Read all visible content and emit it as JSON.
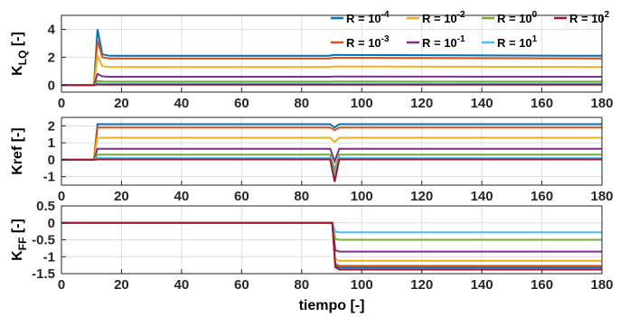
{
  "chart_data": [
    {
      "type": "line",
      "ylabel": "K",
      "ylabel_sub": "LQ",
      "ylabel_suffix": " [-]",
      "xlim": [
        0,
        180
      ],
      "ylim": [
        -0.5,
        5
      ],
      "xticks": [
        "0",
        "20",
        "40",
        "60",
        "80",
        "100",
        "120",
        "140",
        "160",
        "180"
      ],
      "yticks": [
        "0",
        "2",
        "4"
      ],
      "ytick_values": [
        0,
        2,
        4
      ],
      "grid": true,
      "legend_placement": "top-right",
      "series": [
        {
          "name": "R = 10",
          "exp": "-4",
          "color": "#0072bd",
          "base": 0.0,
          "peak": 4.0,
          "settle": 2.1,
          "dip": 0.0
        },
        {
          "name": "R = 10",
          "exp": "-3",
          "color": "#d95319",
          "base": 0.0,
          "peak": 3.2,
          "settle": 1.9,
          "dip": 0.0
        },
        {
          "name": "R = 10",
          "exp": "-2",
          "color": "#edb120",
          "base": 0.0,
          "peak": 2.1,
          "settle": 1.3,
          "dip": 0.0
        },
        {
          "name": "R = 10",
          "exp": "-1",
          "color": "#7e2f8e",
          "base": 0.0,
          "peak": 0.8,
          "settle": 0.6,
          "dip": 0.0
        },
        {
          "name": "R = 10",
          "exp": "0",
          "color": "#77ac30",
          "base": 0.0,
          "peak": 0.3,
          "settle": 0.25,
          "dip": 0.0
        },
        {
          "name": "R = 10",
          "exp": "1",
          "color": "#4dbeee",
          "base": 0.0,
          "peak": 0.12,
          "settle": 0.1,
          "dip": 0.0
        },
        {
          "name": "R = 10",
          "exp": "2",
          "color": "#a2142f",
          "base": 0.0,
          "peak": 0.05,
          "settle": 0.03,
          "dip": 0.0
        }
      ]
    },
    {
      "type": "line",
      "ylabel": "Kref [-]",
      "xlim": [
        0,
        180
      ],
      "ylim": [
        -1.5,
        2.5
      ],
      "xticks": [
        "0",
        "20",
        "40",
        "60",
        "80",
        "100",
        "120",
        "140",
        "160",
        "180"
      ],
      "yticks": [
        "-1",
        "0",
        "1",
        "2"
      ],
      "ytick_values": [
        -1,
        0,
        1,
        2
      ],
      "grid": true,
      "series": [
        {
          "color": "#0072bd",
          "settle": 2.1,
          "dip": 1.9
        },
        {
          "color": "#d95319",
          "settle": 1.9,
          "dip": 1.75
        },
        {
          "color": "#edb120",
          "settle": 1.3,
          "dip": 1.05
        },
        {
          "color": "#7e2f8e",
          "settle": 0.65,
          "dip": -0.1
        },
        {
          "color": "#77ac30",
          "settle": 0.3,
          "dip": -0.6
        },
        {
          "color": "#4dbeee",
          "settle": 0.1,
          "dip": -1.0
        },
        {
          "color": "#a2142f",
          "settle": 0.02,
          "dip": -1.3
        }
      ]
    },
    {
      "type": "line",
      "ylabel": "K",
      "ylabel_sub": "FF",
      "ylabel_suffix": " [-]",
      "xlabel": "tiempo [-]",
      "xlim": [
        0,
        180
      ],
      "ylim": [
        -1.5,
        0.5
      ],
      "xticks": [
        "0",
        "20",
        "40",
        "60",
        "80",
        "100",
        "120",
        "140",
        "160",
        "180"
      ],
      "yticks": [
        "0.5",
        "0",
        "-0.5",
        "-1",
        "-1.5"
      ],
      "ytick_values": [
        0.5,
        0,
        -0.5,
        -1,
        -1.5
      ],
      "grid": true,
      "series": [
        {
          "color": "#0072bd",
          "settle": -1.32
        },
        {
          "color": "#d95319",
          "settle": -1.27
        },
        {
          "color": "#edb120",
          "settle": -1.12
        },
        {
          "color": "#7e2f8e",
          "settle": -0.85
        },
        {
          "color": "#77ac30",
          "settle": -0.5
        },
        {
          "color": "#4dbeee",
          "settle": -0.28
        },
        {
          "color": "#a2142f",
          "settle": -1.38
        }
      ]
    }
  ]
}
